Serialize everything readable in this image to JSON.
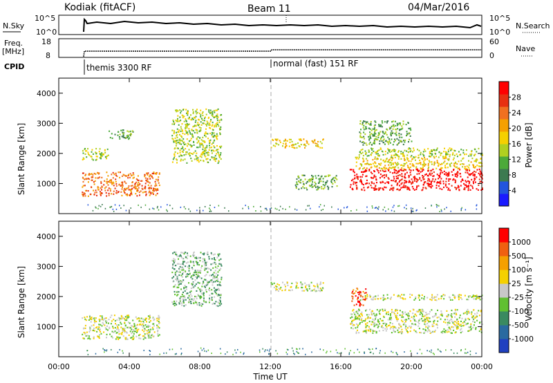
{
  "header": {
    "radar": "Kodiak (fitACF)",
    "beam": "Beam 11",
    "date": "04/Mar/2016"
  },
  "sky_panel": {
    "left_label": "N.Sky",
    "left_ticks": [
      "10^5",
      "10^0"
    ],
    "right_ticks": [
      "10^5",
      "10^0"
    ],
    "right_label": "N.Search"
  },
  "freq_panel": {
    "left_label_1": "Freq.",
    "left_label_2": "[MHz]",
    "left_ticks": [
      "18",
      "8"
    ],
    "right_ticks": [
      "60",
      "0"
    ],
    "right_label": "Nave"
  },
  "cpid": {
    "label": "CPID",
    "mode_1": "themis 3300 RF",
    "mode_2": "normal (fast) 151 RF"
  },
  "power_panel": {
    "ylabel": "Slant Range [km]",
    "yticks": [
      "4000",
      "3000",
      "2000",
      "1000"
    ],
    "colorbar_label": "Power [dB]",
    "colorbar_ticks": [
      "28",
      "24",
      "20",
      "16",
      "12",
      "8",
      "4"
    ],
    "colors": [
      "#1a1aff",
      "#2255dd",
      "#3c7a50",
      "#4caa3a",
      "#b0d020",
      "#f5d000",
      "#f5a000",
      "#f07020",
      "#e83010",
      "#ff0000"
    ]
  },
  "velocity_panel": {
    "ylabel": "Slant Range [km]",
    "yticks": [
      "4000",
      "3000",
      "2000",
      "1000"
    ],
    "colorbar_label": "Velocity [m s⁻¹]",
    "colorbar_ticks": [
      "1000",
      "500",
      "100",
      "25",
      "-25",
      "-100",
      "-500",
      "-1000"
    ],
    "colors": [
      "#2040c0",
      "#2a6aa0",
      "#3a8a60",
      "#60c030",
      "#c8c8c8",
      "#f5d000",
      "#f5a000",
      "#f06010",
      "#ff0000"
    ]
  },
  "xaxis": {
    "ticks": [
      "00:00",
      "04:00",
      "08:00",
      "12:00",
      "16:00",
      "20:00",
      "00:00"
    ],
    "label": "Time UT"
  },
  "chart_data": {
    "type": "heatmap",
    "x_unit": "hours UT",
    "xlim": [
      0,
      24
    ],
    "ylim": [
      0,
      4500
    ],
    "mode_change_hour": 12,
    "power_regions": [
      {
        "t0": 1.3,
        "t1": 5.7,
        "r0": 600,
        "r1": 1400,
        "level": 7
      },
      {
        "t0": 1.3,
        "t1": 2.8,
        "r0": 1800,
        "r1": 2200,
        "level": 4
      },
      {
        "t0": 2.8,
        "t1": 4.2,
        "r0": 2500,
        "r1": 2800,
        "level": 3
      },
      {
        "t0": 6.4,
        "t1": 9.2,
        "r0": 1700,
        "r1": 3500,
        "level": 4
      },
      {
        "t0": 12.0,
        "t1": 15.0,
        "r0": 2200,
        "r1": 2500,
        "level": 5
      },
      {
        "t0": 13.4,
        "t1": 15.8,
        "r0": 800,
        "r1": 1300,
        "level": 3
      },
      {
        "t0": 16.5,
        "t1": 24.0,
        "r0": 800,
        "r1": 1500,
        "level": 9
      },
      {
        "t0": 16.8,
        "t1": 24.0,
        "r0": 1500,
        "r1": 1900,
        "level": 5
      },
      {
        "t0": 17.0,
        "t1": 24.0,
        "r0": 1900,
        "r1": 2200,
        "level": 4
      },
      {
        "t0": 17.0,
        "t1": 20.0,
        "r0": 2300,
        "r1": 3100,
        "level": 3
      }
    ],
    "velocity_regions": [
      {
        "t0": 1.3,
        "t1": 5.7,
        "r0": 600,
        "r1": 1400,
        "level": 4
      },
      {
        "t0": 6.4,
        "t1": 9.2,
        "r0": 1700,
        "r1": 3500,
        "level": 3
      },
      {
        "t0": 12.0,
        "t1": 15.0,
        "r0": 2200,
        "r1": 2500,
        "level": 4
      },
      {
        "t0": 16.5,
        "t1": 24.0,
        "r0": 800,
        "r1": 1600,
        "level": 4
      },
      {
        "t0": 17.0,
        "t1": 24.0,
        "r0": 1900,
        "r1": 2100,
        "level": 4
      },
      {
        "t0": 16.6,
        "t1": 17.4,
        "r0": 1700,
        "r1": 2300,
        "level": 7
      }
    ]
  }
}
